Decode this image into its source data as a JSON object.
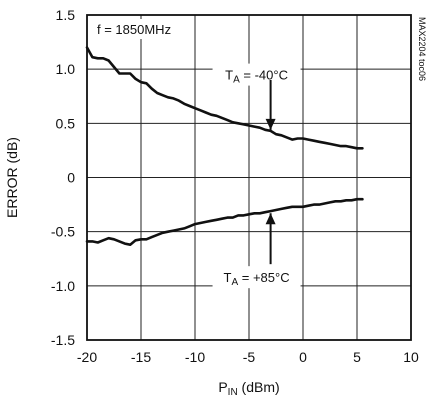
{
  "chart_data": {
    "type": "line",
    "title": "",
    "xlabel_main": "P",
    "xlabel_sub": "IN",
    "xlabel_tail": " (dBm)",
    "ylabel": "ERROR (dB)",
    "xlim": [
      -20,
      10
    ],
    "ylim": [
      -1.5,
      1.5
    ],
    "grid": true,
    "x_ticks": [
      -20,
      -15,
      -10,
      -5,
      0,
      5,
      10
    ],
    "x_tick_labels": [
      "-20",
      "-15",
      "-10",
      "-5",
      "0",
      "5",
      "10"
    ],
    "y_ticks": [
      -1.5,
      -1.0,
      -0.5,
      0,
      0.5,
      1.0,
      1.5
    ],
    "y_tick_labels": [
      "-1.5",
      "-1.0",
      "-0.5",
      "0",
      "0.5",
      "1.0",
      "1.5"
    ],
    "condition_label": "f = 1850MHz",
    "watermark": "MAX2204 toc06",
    "series": [
      {
        "label_main": "T",
        "label_sub": "A",
        "label_tail": " = -40°C",
        "x": [
          -20,
          -19.5,
          -19,
          -18.5,
          -18,
          -17.5,
          -17,
          -16.5,
          -16,
          -15.5,
          -15,
          -14.5,
          -14,
          -13.5,
          -13,
          -12.5,
          -12,
          -11.5,
          -11,
          -10.5,
          -10,
          -9.5,
          -9,
          -8.5,
          -8,
          -7.5,
          -7,
          -6.5,
          -6,
          -5.5,
          -5,
          -4.5,
          -4,
          -3.5,
          -3,
          -2.5,
          -2,
          -1.5,
          -1,
          -0.5,
          0,
          0.5,
          1,
          1.5,
          2,
          2.5,
          3,
          3.5,
          4,
          4.5,
          5,
          5.5
        ],
        "y": [
          1.2,
          1.11,
          1.1,
          1.1,
          1.08,
          1.02,
          0.96,
          0.96,
          0.96,
          0.91,
          0.88,
          0.87,
          0.82,
          0.78,
          0.76,
          0.74,
          0.73,
          0.71,
          0.68,
          0.66,
          0.64,
          0.62,
          0.6,
          0.58,
          0.57,
          0.55,
          0.53,
          0.51,
          0.5,
          0.49,
          0.48,
          0.47,
          0.46,
          0.44,
          0.43,
          0.4,
          0.39,
          0.37,
          0.35,
          0.36,
          0.36,
          0.35,
          0.34,
          0.33,
          0.32,
          0.31,
          0.3,
          0.29,
          0.29,
          0.28,
          0.27,
          0.27
        ]
      },
      {
        "label_main": "T",
        "label_sub": "A",
        "label_tail": " = +85°C",
        "x": [
          -20,
          -19.5,
          -19,
          -18.5,
          -18,
          -17.5,
          -17,
          -16.5,
          -16,
          -15.5,
          -15,
          -14.5,
          -14,
          -13.5,
          -13,
          -12.5,
          -12,
          -11.5,
          -11,
          -10.5,
          -10,
          -9.5,
          -9,
          -8.5,
          -8,
          -7.5,
          -7,
          -6.5,
          -6,
          -5.5,
          -5,
          -4.5,
          -4,
          -3.5,
          -3,
          -2.5,
          -2,
          -1.5,
          -1,
          -0.5,
          0,
          0.5,
          1,
          1.5,
          2,
          2.5,
          3,
          3.5,
          4,
          4.5,
          5,
          5.5
        ],
        "y": [
          -0.59,
          -0.59,
          -0.6,
          -0.58,
          -0.56,
          -0.57,
          -0.59,
          -0.61,
          -0.62,
          -0.58,
          -0.57,
          -0.57,
          -0.55,
          -0.53,
          -0.51,
          -0.5,
          -0.49,
          -0.48,
          -0.47,
          -0.45,
          -0.43,
          -0.42,
          -0.41,
          -0.4,
          -0.39,
          -0.38,
          -0.37,
          -0.37,
          -0.35,
          -0.35,
          -0.34,
          -0.33,
          -0.33,
          -0.32,
          -0.31,
          -0.3,
          -0.29,
          -0.28,
          -0.27,
          -0.27,
          -0.27,
          -0.26,
          -0.25,
          -0.25,
          -0.24,
          -0.23,
          -0.22,
          -0.22,
          -0.21,
          -0.21,
          -0.2,
          -0.2
        ]
      }
    ]
  }
}
